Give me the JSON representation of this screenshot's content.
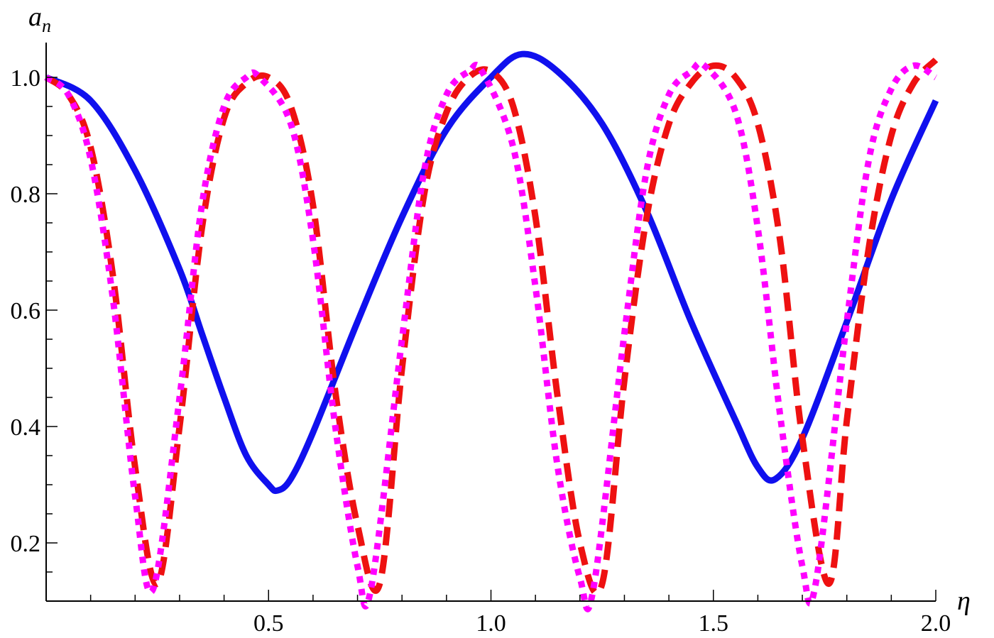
{
  "chart_data": {
    "type": "line",
    "title": "",
    "xlabel": "η",
    "ylabel_main": "a",
    "ylabel_sub": "n",
    "xlim": [
      0.0,
      2.0
    ],
    "ylim": [
      0.1,
      1.05
    ],
    "x_ticks": [
      0.5,
      1.0,
      1.5,
      2.0
    ],
    "x_tick_labels": [
      "0.5",
      "1.0",
      "1.5",
      "2.0"
    ],
    "y_ticks": [
      0.2,
      0.4,
      0.6,
      0.8,
      1.0
    ],
    "y_tick_labels": [
      "0.2",
      "0.4",
      "0.6",
      "0.8",
      "1.0"
    ],
    "grid": false,
    "series": [
      {
        "style": "solid",
        "color": "#1010ee",
        "x": [
          0.0,
          0.1,
          0.2,
          0.3,
          0.35,
          0.4,
          0.45,
          0.5,
          0.52,
          0.55,
          0.6,
          0.7,
          0.8,
          0.9,
          1.0,
          1.07,
          1.15,
          1.25,
          1.35,
          1.45,
          1.55,
          1.6,
          1.64,
          1.7,
          1.8,
          1.9,
          2.0
        ],
        "y": [
          1.0,
          0.96,
          0.84,
          0.67,
          0.56,
          0.45,
          0.35,
          0.3,
          0.29,
          0.31,
          0.39,
          0.58,
          0.76,
          0.91,
          1.0,
          1.04,
          1.01,
          0.92,
          0.77,
          0.58,
          0.41,
          0.33,
          0.31,
          0.38,
          0.58,
          0.79,
          0.96
        ]
      },
      {
        "style": "dashed",
        "color": "#ee1111",
        "x": [
          0.0,
          0.05,
          0.1,
          0.15,
          0.2,
          0.25,
          0.3,
          0.35,
          0.4,
          0.45,
          0.5,
          0.55,
          0.6,
          0.65,
          0.7,
          0.75,
          0.8,
          0.85,
          0.9,
          0.95,
          1.0,
          1.05,
          1.1,
          1.15,
          1.2,
          1.25,
          1.3,
          1.35,
          1.4,
          1.45,
          1.5,
          1.55,
          1.6,
          1.65,
          1.7,
          1.76,
          1.8,
          1.85,
          1.9,
          1.95,
          2.0
        ],
        "y": [
          1.0,
          0.97,
          0.88,
          0.66,
          0.33,
          0.13,
          0.4,
          0.74,
          0.93,
          0.99,
          1.0,
          0.95,
          0.78,
          0.46,
          0.23,
          0.13,
          0.5,
          0.8,
          0.94,
          1.0,
          1.01,
          0.95,
          0.76,
          0.45,
          0.2,
          0.13,
          0.48,
          0.76,
          0.92,
          0.99,
          1.02,
          1.0,
          0.92,
          0.72,
          0.38,
          0.13,
          0.41,
          0.71,
          0.9,
          0.99,
          1.03
        ]
      },
      {
        "style": "dotted",
        "color": "#ff00ff",
        "x": [
          0.0,
          0.05,
          0.1,
          0.15,
          0.2,
          0.24,
          0.3,
          0.35,
          0.4,
          0.45,
          0.48,
          0.55,
          0.6,
          0.65,
          0.7,
          0.73,
          0.8,
          0.85,
          0.9,
          0.95,
          0.98,
          1.05,
          1.1,
          1.15,
          1.2,
          1.23,
          1.3,
          1.35,
          1.4,
          1.45,
          1.48,
          1.55,
          1.6,
          1.65,
          1.7,
          1.73,
          1.8,
          1.85,
          1.9,
          1.95,
          2.0
        ],
        "y": [
          1.0,
          0.97,
          0.86,
          0.62,
          0.28,
          0.12,
          0.45,
          0.78,
          0.95,
          1.0,
          1.0,
          0.92,
          0.72,
          0.4,
          0.16,
          0.12,
          0.55,
          0.84,
          0.97,
          1.01,
          1.01,
          0.88,
          0.64,
          0.33,
          0.14,
          0.12,
          0.56,
          0.84,
          0.97,
          1.01,
          1.02,
          0.94,
          0.74,
          0.42,
          0.16,
          0.13,
          0.58,
          0.86,
          0.98,
          1.02,
          1.0
        ]
      }
    ]
  }
}
